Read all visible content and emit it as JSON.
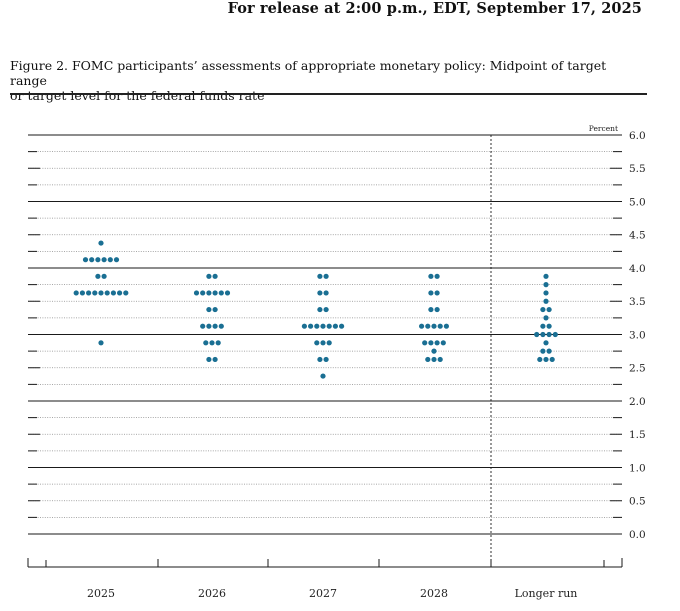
{
  "header": {
    "release": "For release at 2:00 p.m., EDT, September 17, 2025"
  },
  "figure": {
    "title_line1": "Figure 2. FOMC participants’ assessments of appropriate monetary policy: Midpoint of target range",
    "title_line2": "or target level for the federal funds rate"
  },
  "chart_data": {
    "type": "scatter",
    "ylabel": "Percent",
    "ylim": [
      0,
      6
    ],
    "y_ticks": [
      "6.0",
      "5.5",
      "5.0",
      "4.5",
      "4.0",
      "3.5",
      "3.0",
      "2.5",
      "2.0",
      "1.5",
      "1.0",
      "0.5",
      "0.0"
    ],
    "categories": [
      "2025",
      "2026",
      "2027",
      "2028",
      "Longer run"
    ],
    "dot_color": "#1a6f93",
    "dots": [
      {
        "category": "2025",
        "values": [
          {
            "rate": 4.375,
            "count": 1
          },
          {
            "rate": 4.125,
            "count": 6
          },
          {
            "rate": 3.875,
            "count": 2
          },
          {
            "rate": 3.625,
            "count": 9
          },
          {
            "rate": 2.875,
            "count": 1
          }
        ]
      },
      {
        "category": "2026",
        "values": [
          {
            "rate": 3.875,
            "count": 2
          },
          {
            "rate": 3.625,
            "count": 6
          },
          {
            "rate": 3.375,
            "count": 2
          },
          {
            "rate": 3.125,
            "count": 4
          },
          {
            "rate": 2.875,
            "count": 3
          },
          {
            "rate": 2.625,
            "count": 2
          }
        ]
      },
      {
        "category": "2027",
        "values": [
          {
            "rate": 3.875,
            "count": 2
          },
          {
            "rate": 3.625,
            "count": 2
          },
          {
            "rate": 3.375,
            "count": 2
          },
          {
            "rate": 3.125,
            "count": 7
          },
          {
            "rate": 2.875,
            "count": 3
          },
          {
            "rate": 2.625,
            "count": 2
          },
          {
            "rate": 2.375,
            "count": 1
          }
        ]
      },
      {
        "category": "2028",
        "values": [
          {
            "rate": 3.875,
            "count": 2
          },
          {
            "rate": 3.625,
            "count": 2
          },
          {
            "rate": 3.375,
            "count": 2
          },
          {
            "rate": 3.125,
            "count": 5
          },
          {
            "rate": 2.875,
            "count": 4
          },
          {
            "rate": 2.75,
            "count": 1
          },
          {
            "rate": 2.625,
            "count": 3
          }
        ]
      },
      {
        "category": "Longer run",
        "values": [
          {
            "rate": 3.875,
            "count": 1
          },
          {
            "rate": 3.75,
            "count": 1
          },
          {
            "rate": 3.625,
            "count": 1
          },
          {
            "rate": 3.5,
            "count": 1
          },
          {
            "rate": 3.375,
            "count": 2
          },
          {
            "rate": 3.25,
            "count": 1
          },
          {
            "rate": 3.125,
            "count": 2
          },
          {
            "rate": 3.0,
            "count": 4
          },
          {
            "rate": 2.875,
            "count": 1
          },
          {
            "rate": 2.75,
            "count": 2
          },
          {
            "rate": 2.625,
            "count": 3
          }
        ]
      }
    ],
    "grid": true,
    "legend": "none"
  }
}
